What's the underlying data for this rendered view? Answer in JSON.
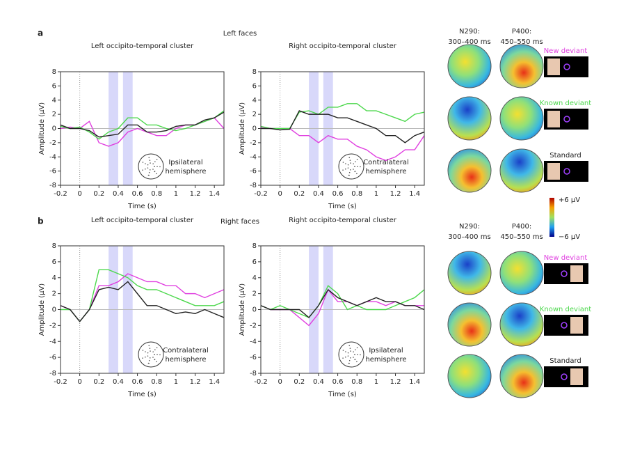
{
  "panels": [
    {
      "letter": "a",
      "title": "Left faces"
    },
    {
      "letter": "b",
      "title": "Right faces"
    }
  ],
  "chart_data": [
    {
      "type": "line",
      "title": "Left occipito-temporal cluster",
      "xlabel": "Time (s)",
      "ylabel": "Amplitude (μV)",
      "annotation": [
        "Ipsilateral",
        "hemisphere"
      ],
      "x": [
        -0.2,
        -0.1,
        0,
        0.1,
        0.2,
        0.3,
        0.4,
        0.5,
        0.6,
        0.7,
        0.8,
        0.9,
        1.0,
        1.1,
        1.2,
        1.3,
        1.4,
        1.5
      ],
      "series": [
        {
          "color": "#e040e0",
          "values": [
            0,
            0.2,
            0,
            1.0,
            -2,
            -2.5,
            -2,
            -0.5,
            0,
            -0.5,
            -1,
            -1,
            0,
            0.5,
            0.5,
            1,
            1.5,
            0
          ]
        },
        {
          "color": "#4cd84c",
          "values": [
            0.3,
            0,
            0.2,
            -0.5,
            -1.5,
            -0.5,
            0,
            1.5,
            1.5,
            0.5,
            0.5,
            0,
            -0.3,
            0,
            0.5,
            1,
            1.5,
            2.5
          ]
        },
        {
          "color": "#222222",
          "values": [
            0.5,
            0,
            0,
            -0.3,
            -1.2,
            -1.0,
            -0.8,
            0.5,
            0.5,
            -0.5,
            -0.5,
            -0.3,
            0.3,
            0.5,
            0.5,
            1.2,
            1.5,
            2.3
          ]
        }
      ],
      "highlight_windows": [
        [
          0.3,
          0.4
        ],
        [
          0.45,
          0.55
        ]
      ],
      "xlim": [
        -0.2,
        1.5
      ],
      "ylim": [
        -8,
        8
      ],
      "xticks": [
        -0.2,
        0,
        0.2,
        0.4,
        0.6,
        0.8,
        1,
        1.2,
        1.4
      ],
      "yticks": [
        -8,
        -6,
        -4,
        -2,
        0,
        2,
        4,
        6,
        8
      ]
    },
    {
      "type": "line",
      "title": "Right occipito-temporal cluster",
      "xlabel": "Time (s)",
      "ylabel": "Amplitude (μV)",
      "annotation": [
        "Contralateral",
        "hemisphere"
      ],
      "x": [
        -0.2,
        -0.1,
        0,
        0.1,
        0.2,
        0.3,
        0.4,
        0.5,
        0.6,
        0.7,
        0.8,
        0.9,
        1.0,
        1.1,
        1.2,
        1.3,
        1.4,
        1.5
      ],
      "series": [
        {
          "color": "#e040e0",
          "values": [
            0.2,
            0,
            0,
            0,
            -1,
            -1,
            -2,
            -1,
            -1.5,
            -1.5,
            -2.5,
            -3,
            -4,
            -4.5,
            -4,
            -3,
            -3,
            -1
          ]
        },
        {
          "color": "#4cd84c",
          "values": [
            0.3,
            0,
            0,
            0,
            2.3,
            2.5,
            2,
            3,
            3,
            3.5,
            3.5,
            2.5,
            2.5,
            2,
            1.5,
            1,
            2,
            2.3
          ]
        },
        {
          "color": "#222222",
          "values": [
            0,
            0,
            -0.2,
            -0.1,
            2.5,
            2,
            2,
            2,
            1.5,
            1.5,
            1,
            0.5,
            0,
            -1,
            -1,
            -2,
            -1,
            -0.5
          ]
        }
      ],
      "highlight_windows": [
        [
          0.3,
          0.4
        ],
        [
          0.45,
          0.55
        ]
      ],
      "xlim": [
        -0.2,
        1.5
      ],
      "ylim": [
        -8,
        8
      ],
      "xticks": [
        -0.2,
        0,
        0.2,
        0.4,
        0.6,
        0.8,
        1,
        1.2,
        1.4
      ],
      "yticks": [
        -8,
        -6,
        -4,
        -2,
        0,
        2,
        4,
        6,
        8
      ]
    },
    {
      "type": "line",
      "title": "Left occipito-temporal cluster",
      "xlabel": "Time (s)",
      "ylabel": "Amplitude (μV)",
      "annotation": [
        "Contralateral",
        "hemisphere"
      ],
      "x": [
        -0.2,
        -0.1,
        0,
        0.1,
        0.2,
        0.3,
        0.4,
        0.5,
        0.6,
        0.7,
        0.8,
        0.9,
        1.0,
        1.1,
        1.2,
        1.3,
        1.4,
        1.5
      ],
      "series": [
        {
          "color": "#e040e0",
          "values": [
            0.5,
            0,
            -1.5,
            0,
            3,
            3,
            3.5,
            4.5,
            4,
            3.5,
            3.5,
            3,
            3,
            2,
            2,
            1.5,
            2,
            2.5
          ]
        },
        {
          "color": "#4cd84c",
          "values": [
            0,
            0,
            -1.5,
            0,
            5,
            5,
            4.5,
            4,
            3,
            2.5,
            2.5,
            2,
            1.5,
            1,
            0.5,
            0.5,
            0.5,
            1
          ]
        },
        {
          "color": "#222222",
          "values": [
            0.5,
            0,
            -1.5,
            0,
            2.5,
            2.8,
            2.5,
            3.5,
            2,
            0.5,
            0.5,
            0,
            -0.5,
            -0.3,
            -0.5,
            0,
            -0.5,
            -1
          ]
        }
      ],
      "highlight_windows": [
        [
          0.3,
          0.4
        ],
        [
          0.45,
          0.55
        ]
      ],
      "xlim": [
        -0.2,
        1.5
      ],
      "ylim": [
        -8,
        8
      ],
      "xticks": [
        -0.2,
        0,
        0.2,
        0.4,
        0.6,
        0.8,
        1,
        1.2,
        1.4
      ],
      "yticks": [
        -8,
        -6,
        -4,
        -2,
        0,
        2,
        4,
        6,
        8
      ]
    },
    {
      "type": "line",
      "title": "Right occipito-temporal cluster",
      "xlabel": "Time (s)",
      "ylabel": "Amplitude (μV)",
      "annotation": [
        "Ipsilateral",
        "hemisphere"
      ],
      "x": [
        -0.2,
        -0.1,
        0,
        0.1,
        0.2,
        0.3,
        0.4,
        0.5,
        0.6,
        0.7,
        0.8,
        0.9,
        1.0,
        1.1,
        1.2,
        1.3,
        1.4,
        1.5
      ],
      "series": [
        {
          "color": "#e040e0",
          "values": [
            0.5,
            0,
            0,
            0,
            -1,
            -2,
            -0.5,
            2.5,
            1,
            1,
            0.5,
            1,
            1,
            0.5,
            1,
            0.5,
            0.5,
            0.5
          ]
        },
        {
          "color": "#4cd84c",
          "values": [
            0.5,
            0,
            0.5,
            0,
            -0.5,
            -1,
            0.5,
            3,
            2,
            0,
            0.5,
            0,
            0,
            0,
            0.5,
            1,
            1.5,
            2.5
          ]
        },
        {
          "color": "#222222",
          "values": [
            0.5,
            0,
            0,
            0,
            0,
            -1,
            0.5,
            2.5,
            1.5,
            1,
            0.5,
            1,
            1.5,
            1,
            1,
            0.5,
            0.5,
            0
          ]
        }
      ],
      "highlight_windows": [
        [
          0.3,
          0.4
        ],
        [
          0.45,
          0.55
        ]
      ],
      "xlim": [
        -0.2,
        1.5
      ],
      "ylim": [
        -8,
        8
      ],
      "xticks": [
        -0.2,
        0,
        0.2,
        0.4,
        0.6,
        0.8,
        1,
        1.2,
        1.4
      ],
      "yticks": [
        -8,
        -6,
        -4,
        -2,
        0,
        2,
        4,
        6,
        8
      ]
    }
  ],
  "topomaps": [
    {
      "columns": [
        {
          "name": "N290:",
          "window": "300–400 ms"
        },
        {
          "name": "P400:",
          "window": "450–550 ms"
        }
      ],
      "rows": [
        "New deviant",
        "Known deviant",
        "Standard"
      ]
    },
    {
      "columns": [
        {
          "name": "N290:",
          "window": "300–400 ms"
        },
        {
          "name": "P400:",
          "window": "450–550 ms"
        }
      ],
      "rows": [
        "New deviant",
        "Known deviant",
        "Standard"
      ]
    }
  ],
  "colorbar": {
    "max_label": "+6 μV",
    "min_label": "−6 μV"
  }
}
